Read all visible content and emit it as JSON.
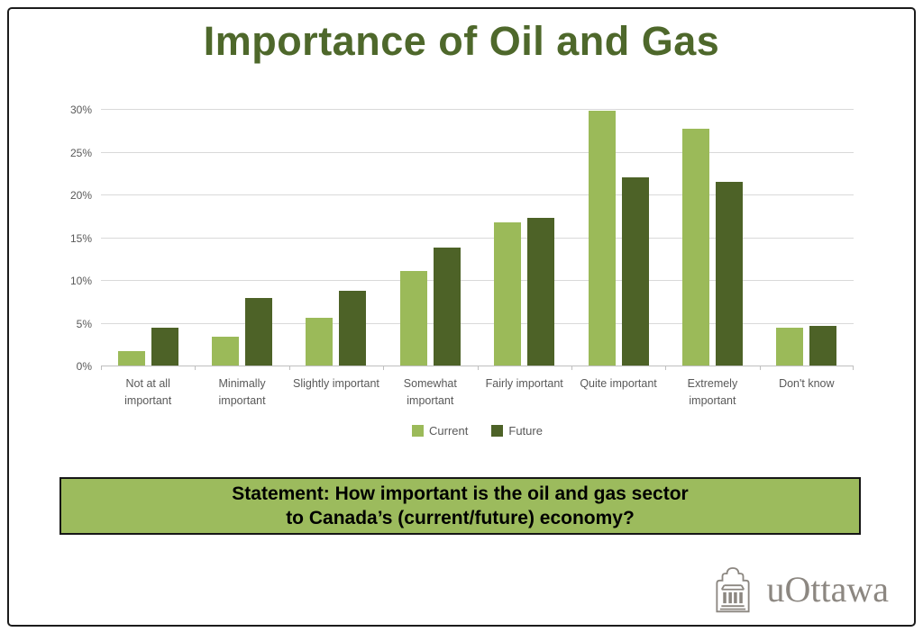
{
  "slide": {
    "title": "Importance of Oil and Gas",
    "statement_line1": "Statement: How important is the oil and gas sector",
    "statement_line2": "to Canada’s (current/future) economy?",
    "logo_text": "uOttawa"
  },
  "colors": {
    "current": "#9bba59",
    "future": "#4d6227",
    "title_green": "#4e682b",
    "statement_bg": "#9cbb5d",
    "gridline": "#d9d9d9",
    "axis": "#bfbfbf",
    "tick_text": "#595959",
    "logo_gray": "#8c8781"
  },
  "chart_data": {
    "type": "bar",
    "title": "Importance of Oil and Gas",
    "categories": [
      "Not at all important",
      "Minimally important",
      "Slightly important",
      "Somewhat important",
      "Fairly important",
      "Quite important",
      "Extremely important",
      "Don't know"
    ],
    "series": [
      {
        "name": "Current",
        "color": "#9bba59",
        "values": [
          1.7,
          3.4,
          5.6,
          11.1,
          16.7,
          29.8,
          27.7,
          4.4
        ]
      },
      {
        "name": "Future",
        "color": "#4d6227",
        "values": [
          4.4,
          7.9,
          8.7,
          13.8,
          17.3,
          22.0,
          21.5,
          4.6
        ]
      }
    ],
    "xlabel": "",
    "ylabel": "",
    "ylim": [
      0,
      30
    ],
    "ytick_step": 5,
    "yticks": [
      "0%",
      "5%",
      "10%",
      "15%",
      "20%",
      "25%",
      "30%"
    ],
    "grid": true,
    "legend_position": "bottom"
  }
}
